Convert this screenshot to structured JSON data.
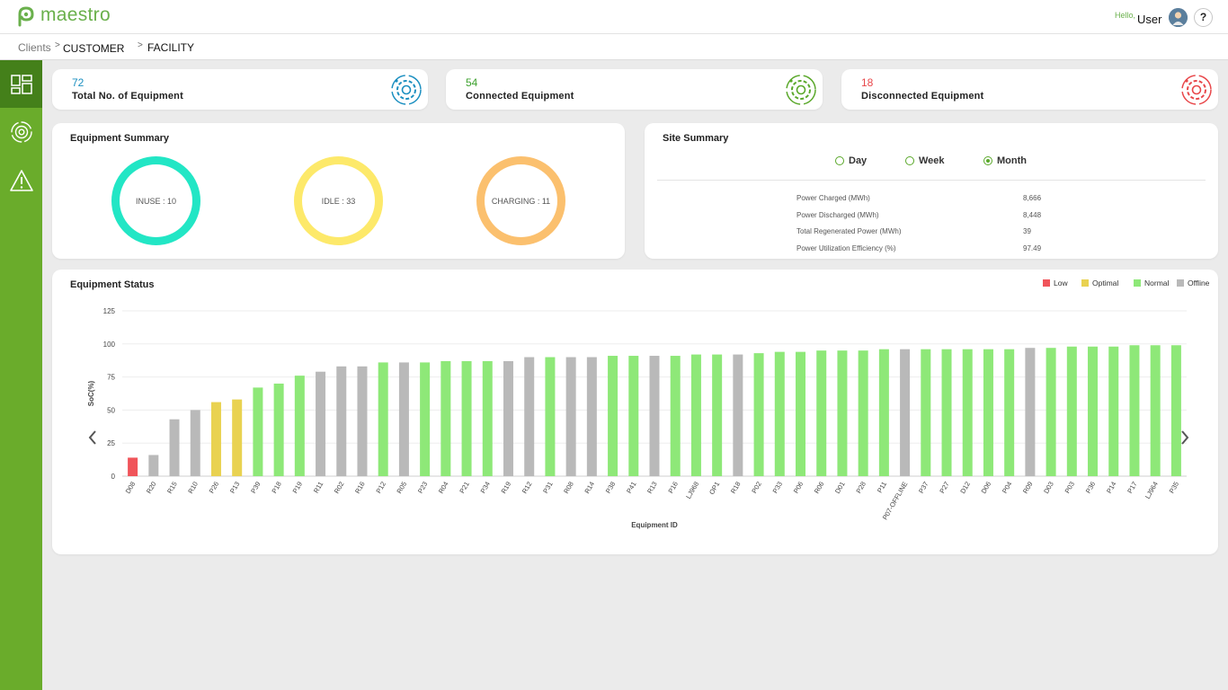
{
  "app": {
    "logo_text": "maestro"
  },
  "header": {
    "greeting": "Hello,",
    "user_name": "User",
    "help_label": "?"
  },
  "breadcrumb": {
    "items": [
      "Clients",
      "CUSTOMER",
      "FACILITY"
    ],
    "separator": ">"
  },
  "sidebar": {
    "items": [
      {
        "icon": "dashboard-icon",
        "active": true
      },
      {
        "icon": "equipment-icon",
        "active": false
      },
      {
        "icon": "alert-icon",
        "active": false
      }
    ]
  },
  "stats": [
    {
      "value": "72",
      "label": "Total No. of Equipment",
      "color": "#1b8fc0",
      "icon": "equipment-total-icon"
    },
    {
      "value": "54",
      "label": "Connected Equipment",
      "color": "#3fa230",
      "icon": "equipment-connected-icon"
    },
    {
      "value": "18",
      "label": "Disconnected Equipment",
      "color": "#e8474a",
      "icon": "equipment-disconnected-icon"
    }
  ],
  "equipment_summary": {
    "title": "Equipment Summary",
    "rings": [
      {
        "label": "INUSE : 10",
        "color": "#22e6c5"
      },
      {
        "label": "IDLE : 33",
        "color": "#fde96a"
      },
      {
        "label": "CHARGING : 11",
        "color": "#fbc06e"
      }
    ]
  },
  "site_summary": {
    "title": "Site Summary",
    "periods": [
      {
        "label": "Day",
        "selected": false
      },
      {
        "label": "Week",
        "selected": false
      },
      {
        "label": "Month",
        "selected": true
      }
    ],
    "rows": [
      {
        "label": "Power Charged (MWh)",
        "value": "8,666"
      },
      {
        "label": "Power Discharged (MWh)",
        "value": "8,448"
      },
      {
        "label": "Total Regenerated Power (MWh)",
        "value": "39"
      },
      {
        "label": "Power Utilization Efficiency (%)",
        "value": "97.49"
      }
    ]
  },
  "equipment_status": {
    "title": "Equipment Status",
    "legend": [
      {
        "label": "Low",
        "color": "#f0545a"
      },
      {
        "label": "Optimal",
        "color": "#e9d251"
      },
      {
        "label": "Normal",
        "color": "#8ee878"
      },
      {
        "label": "Offline",
        "color": "#b9b9b9"
      }
    ]
  },
  "chart_data": {
    "type": "bar",
    "xlabel": "Equipment ID",
    "ylabel": "SoC(%)",
    "ylim": [
      0,
      125
    ],
    "yticks": [
      0,
      25,
      50,
      75,
      100,
      125
    ],
    "grid": true,
    "legend_position": "top-right",
    "categories": [
      "D08",
      "R20",
      "R15",
      "R10",
      "P26",
      "P13",
      "P39",
      "P18",
      "P19",
      "R11",
      "R02",
      "R16",
      "P12",
      "R05",
      "P23",
      "R04",
      "P21",
      "P34",
      "R19",
      "R12",
      "P31",
      "R08",
      "R14",
      "P38",
      "P41",
      "R13",
      "P16",
      "LJ968",
      "OP1",
      "R18",
      "P02",
      "P33",
      "P06",
      "R06",
      "D01",
      "P28",
      "P11",
      "P07-OFFLINE",
      "P37",
      "P27",
      "D12",
      "D06",
      "P04",
      "R09",
      "D03",
      "P03",
      "P36",
      "P14",
      "P17",
      "LJ964",
      "P35"
    ],
    "values": [
      14,
      16,
      43,
      50,
      56,
      58,
      67,
      70,
      76,
      79,
      83,
      83,
      86,
      86,
      86,
      87,
      87,
      87,
      87,
      90,
      90,
      90,
      90,
      91,
      91,
      91,
      91,
      92,
      92,
      92,
      93,
      94,
      94,
      95,
      95,
      95,
      96,
      96,
      96,
      96,
      96,
      96,
      96,
      97,
      97,
      98,
      98,
      98,
      99,
      99,
      99
    ],
    "status": [
      "Low",
      "Offline",
      "Offline",
      "Offline",
      "Optimal",
      "Optimal",
      "Normal",
      "Normal",
      "Normal",
      "Offline",
      "Offline",
      "Offline",
      "Normal",
      "Offline",
      "Normal",
      "Normal",
      "Normal",
      "Normal",
      "Offline",
      "Offline",
      "Normal",
      "Offline",
      "Offline",
      "Normal",
      "Normal",
      "Offline",
      "Normal",
      "Normal",
      "Normal",
      "Offline",
      "Normal",
      "Normal",
      "Normal",
      "Normal",
      "Normal",
      "Normal",
      "Normal",
      "Offline",
      "Normal",
      "Normal",
      "Normal",
      "Normal",
      "Normal",
      "Offline",
      "Normal",
      "Normal",
      "Normal",
      "Normal",
      "Normal",
      "Normal",
      "Normal"
    ]
  }
}
